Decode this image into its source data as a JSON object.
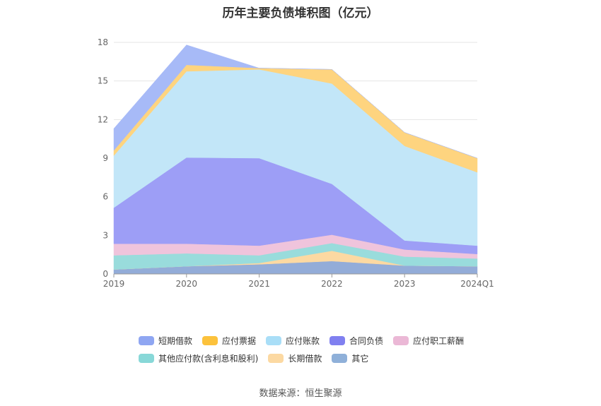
{
  "title": "历年主要负债堆积图（亿元）",
  "source": "数据来源：恒生聚源",
  "chart_data": {
    "type": "area",
    "stacked": true,
    "categories": [
      "2019",
      "2020",
      "2021",
      "2022",
      "2023",
      "2024Q1"
    ],
    "ylim": [
      0,
      18
    ],
    "yticks": [
      0,
      3,
      6,
      9,
      12,
      15,
      18
    ],
    "grid": true,
    "legend_position": "bottom",
    "series": [
      {
        "name": "其它",
        "color": "#93acd8",
        "values": [
          0.35,
          0.6,
          0.75,
          1.0,
          0.65,
          0.6
        ]
      },
      {
        "name": "长期借款",
        "color": "#fcd9a2",
        "values": [
          0.0,
          0.0,
          0.1,
          0.8,
          0.0,
          0.0
        ]
      },
      {
        "name": "其他应付款(含利息和股利)",
        "color": "#99dcdc",
        "values": [
          1.1,
          1.0,
          0.6,
          0.6,
          0.7,
          0.6
        ]
      },
      {
        "name": "应付职工薪酬",
        "color": "#efc4dc",
        "values": [
          0.9,
          0.75,
          0.75,
          0.65,
          0.55,
          0.35
        ]
      },
      {
        "name": "合同负债",
        "color": "#9d9ef6",
        "values": [
          2.8,
          6.7,
          6.8,
          3.95,
          0.7,
          0.65
        ]
      },
      {
        "name": "应付账款",
        "color": "#c2e6f8",
        "values": [
          4.05,
          6.7,
          6.9,
          7.8,
          7.35,
          5.7
        ]
      },
      {
        "name": "应付票据",
        "color": "#fed47f",
        "values": [
          0.4,
          0.5,
          0.1,
          1.1,
          1.05,
          1.1
        ]
      },
      {
        "name": "短期借款",
        "color": "#a7baf7",
        "values": [
          1.7,
          1.55,
          0.0,
          0.0,
          0.0,
          0.0
        ]
      }
    ]
  },
  "legend": [
    {
      "label": "短期借款",
      "color": "#8fa6f2"
    },
    {
      "label": "应付票据",
      "color": "#fcc23c"
    },
    {
      "label": "应付账款",
      "color": "#a9def7"
    },
    {
      "label": "合同负债",
      "color": "#8080f0"
    },
    {
      "label": "应付职工薪酬",
      "color": "#ebb8d6"
    },
    {
      "label": "其他应付款(含利息和股利)",
      "color": "#88d8d8"
    },
    {
      "label": "长期借款",
      "color": "#fcd9a2"
    },
    {
      "label": "其它",
      "color": "#8fb0d9"
    }
  ]
}
